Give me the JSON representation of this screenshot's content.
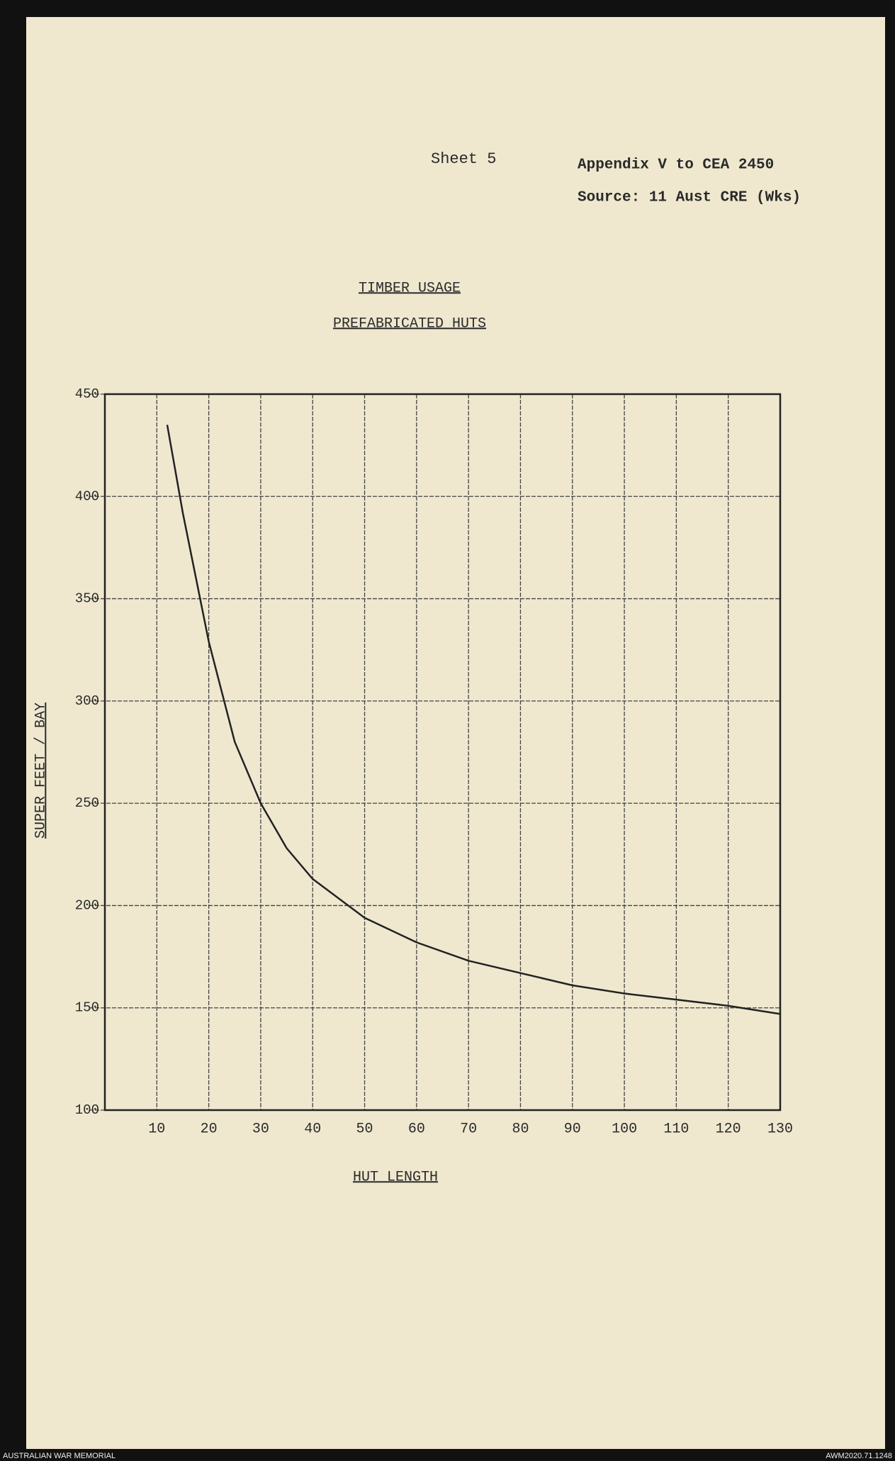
{
  "header": {
    "sheet": "Sheet 5",
    "appendix": "Appendix V to CEA 2450",
    "source": "Source: 11 Aust CRE (Wks)"
  },
  "chart_data": {
    "type": "line",
    "title": "TIMBER USAGE",
    "subtitle": "PREFABRICATED HUTS",
    "x_label": "HUT LENGTH",
    "y_label": "SUPER FEET / BAY",
    "x": [
      12,
      15,
      20,
      25,
      30,
      35,
      40,
      50,
      60,
      70,
      80,
      90,
      100,
      110,
      120,
      130
    ],
    "values": [
      435,
      392,
      329,
      280,
      250,
      228,
      213,
      194,
      182,
      173,
      167,
      161,
      157,
      154,
      151,
      147
    ],
    "color": "#222222",
    "xlim": [
      0,
      130
    ],
    "xticks": [
      10,
      20,
      30,
      40,
      50,
      60,
      70,
      80,
      90,
      100,
      110,
      120,
      130
    ],
    "ylim": [
      100,
      450
    ],
    "yticks": [
      100,
      150,
      200,
      250,
      300,
      350,
      400,
      450
    ],
    "grid": true
  },
  "footer": {
    "left": "AUSTRALIAN WAR MEMORIAL",
    "right": "AWM2020.71.1248"
  }
}
